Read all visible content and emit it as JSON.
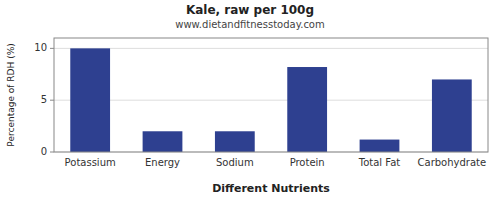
{
  "chart_data": {
    "type": "bar",
    "title": "Kale, raw per 100g",
    "subtitle": "www.dietandfitnesstoday.com",
    "xlabel": "Different Nutrients",
    "ylabel": "Percentage of RDH (%)",
    "categories": [
      "Potassium",
      "Energy",
      "Sodium",
      "Protein",
      "Total Fat",
      "Carbohydrate"
    ],
    "values": [
      10.0,
      2.0,
      2.0,
      8.2,
      1.2,
      7.0
    ],
    "color": "#2e4090",
    "ylim": [
      0,
      11
    ],
    "yticks": [
      0,
      5,
      10
    ],
    "grid": true
  }
}
